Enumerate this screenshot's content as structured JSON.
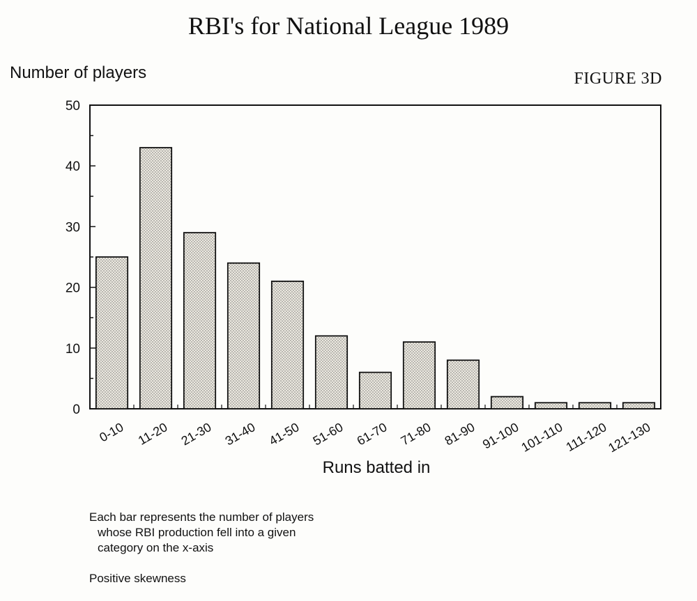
{
  "chart_data": {
    "type": "bar",
    "title": "RBI's for National League 1989",
    "figure_label": "FIGURE 3D",
    "xlabel": "Runs batted in",
    "ylabel": "Number of players",
    "ylim": [
      0,
      50
    ],
    "yticks": [
      "0",
      "10",
      "20",
      "30",
      "40",
      "50"
    ],
    "categories": [
      "0-10",
      "11-20",
      "21-30",
      "31-40",
      "41-50",
      "51-60",
      "61-70",
      "71-80",
      "81-90",
      "91-100",
      "101-110",
      "111-120",
      "121-130"
    ],
    "values": [
      25,
      43,
      29,
      24,
      21,
      12,
      6,
      11,
      8,
      2,
      1,
      1,
      1
    ],
    "grid": false,
    "bar_fill": "#e6e2d8",
    "bar_stroke": "#111111"
  },
  "caption": {
    "lines": [
      "Each bar represents the number of players",
      "whose RBI production fell into a given",
      "category on the x-axis"
    ],
    "note": "Positive skewness"
  }
}
